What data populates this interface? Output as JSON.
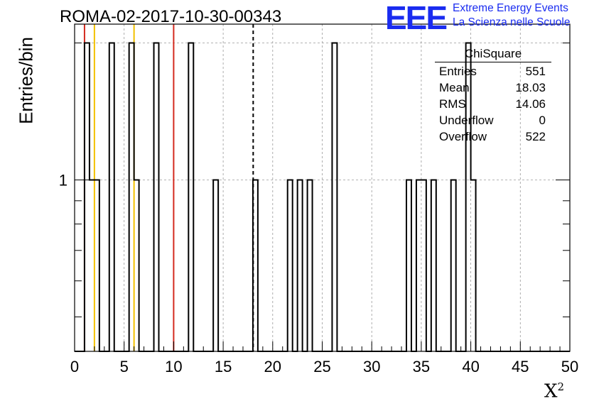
{
  "chart_data": {
    "type": "histogram",
    "title": "ROMA-02-2017-10-30-00343",
    "xlabel_base": "X",
    "xlabel_exp": "2",
    "ylabel": "Entries/bin",
    "xlim": [
      0,
      50
    ],
    "ylim_log": [
      0.42,
      2.2
    ],
    "log_y": true,
    "grid": true,
    "bin_width": 0.5,
    "x_ticks": [
      "0",
      "5",
      "10",
      "15",
      "20",
      "25",
      "30",
      "35",
      "40",
      "45",
      "50"
    ],
    "y_tick_label": "1",
    "bins": [
      {
        "x": 1.0,
        "count": 2
      },
      {
        "x": 1.5,
        "count": 1
      },
      {
        "x": 2.0,
        "count": 1
      },
      {
        "x": 3.5,
        "count": 2
      },
      {
        "x": 5.5,
        "count": 2
      },
      {
        "x": 6.0,
        "count": 1
      },
      {
        "x": 8.0,
        "count": 2
      },
      {
        "x": 11.5,
        "count": 2
      },
      {
        "x": 14.0,
        "count": 1
      },
      {
        "x": 18.0,
        "count": 1
      },
      {
        "x": 21.5,
        "count": 1
      },
      {
        "x": 22.5,
        "count": 1
      },
      {
        "x": 23.5,
        "count": 1
      },
      {
        "x": 26.0,
        "count": 2
      },
      {
        "x": 33.5,
        "count": 1
      },
      {
        "x": 34.5,
        "count": 1
      },
      {
        "x": 35.0,
        "count": 1
      },
      {
        "x": 36.0,
        "count": 1
      },
      {
        "x": 38.0,
        "count": 1
      },
      {
        "x": 39.5,
        "count": 2
      },
      {
        "x": 40.0,
        "count": 1
      }
    ],
    "vertical_lines": [
      {
        "x": 1.0,
        "color": "#d42a1e",
        "style": "solid"
      },
      {
        "x": 2.0,
        "color": "#f2c000",
        "style": "solid"
      },
      {
        "x": 6.0,
        "color": "#f2c000",
        "style": "solid"
      },
      {
        "x": 10.0,
        "color": "#d42a1e",
        "style": "solid"
      },
      {
        "x": 18.03,
        "color": "#000000",
        "style": "dashed"
      }
    ],
    "stats_box": {
      "title": "ChiSquare",
      "rows": [
        {
          "name": "Entries",
          "value": "551"
        },
        {
          "name": "Mean",
          "value": "18.03"
        },
        {
          "name": "RMS",
          "value": "14.06"
        },
        {
          "name": "Underflow",
          "value": "0"
        },
        {
          "name": "Overflow",
          "value": "522"
        }
      ]
    }
  },
  "logo": {
    "mark": "EEE",
    "line1": "Extreme Energy Events",
    "line2": "La Scienza nelle Scuole",
    "color": "#1a2cf0"
  }
}
